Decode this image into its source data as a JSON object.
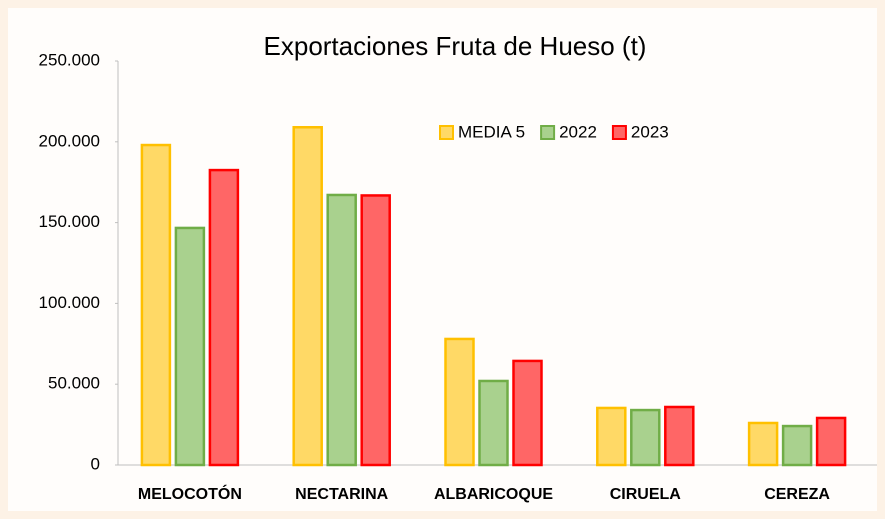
{
  "chart_data": {
    "type": "bar",
    "title": "Exportaciones Fruta de Hueso (t)",
    "categories": [
      "MELOCOTÓN",
      "NECTARINA",
      "ALBARICOQUE",
      "CIRUELA",
      "CEREZA"
    ],
    "series": [
      {
        "name": "MEDIA 5",
        "color": "#ffd966",
        "stroke": "#ffc000",
        "values": [
          198000,
          209000,
          78000,
          35300,
          26000
        ]
      },
      {
        "name": "2022",
        "color": "#a9d18e",
        "stroke": "#70ad47",
        "values": [
          146700,
          167100,
          52000,
          34000,
          24100
        ]
      },
      {
        "name": "2023",
        "color": "#ff6666",
        "stroke": "#ff0000",
        "values": [
          182500,
          166800,
          64400,
          35900,
          29100
        ]
      }
    ],
    "ylim": [
      0,
      250000
    ],
    "yticks": [
      0,
      {
        "value": 50000,
        "label": "50.000"
      },
      {
        "value": 100000,
        "label": "100.000"
      },
      {
        "value": 150000,
        "label": "150.000"
      },
      {
        "value": 200000,
        "label": "200.000"
      },
      {
        "value": 250000,
        "label": "250.000"
      }
    ],
    "grid": false,
    "legend": "top-right"
  }
}
